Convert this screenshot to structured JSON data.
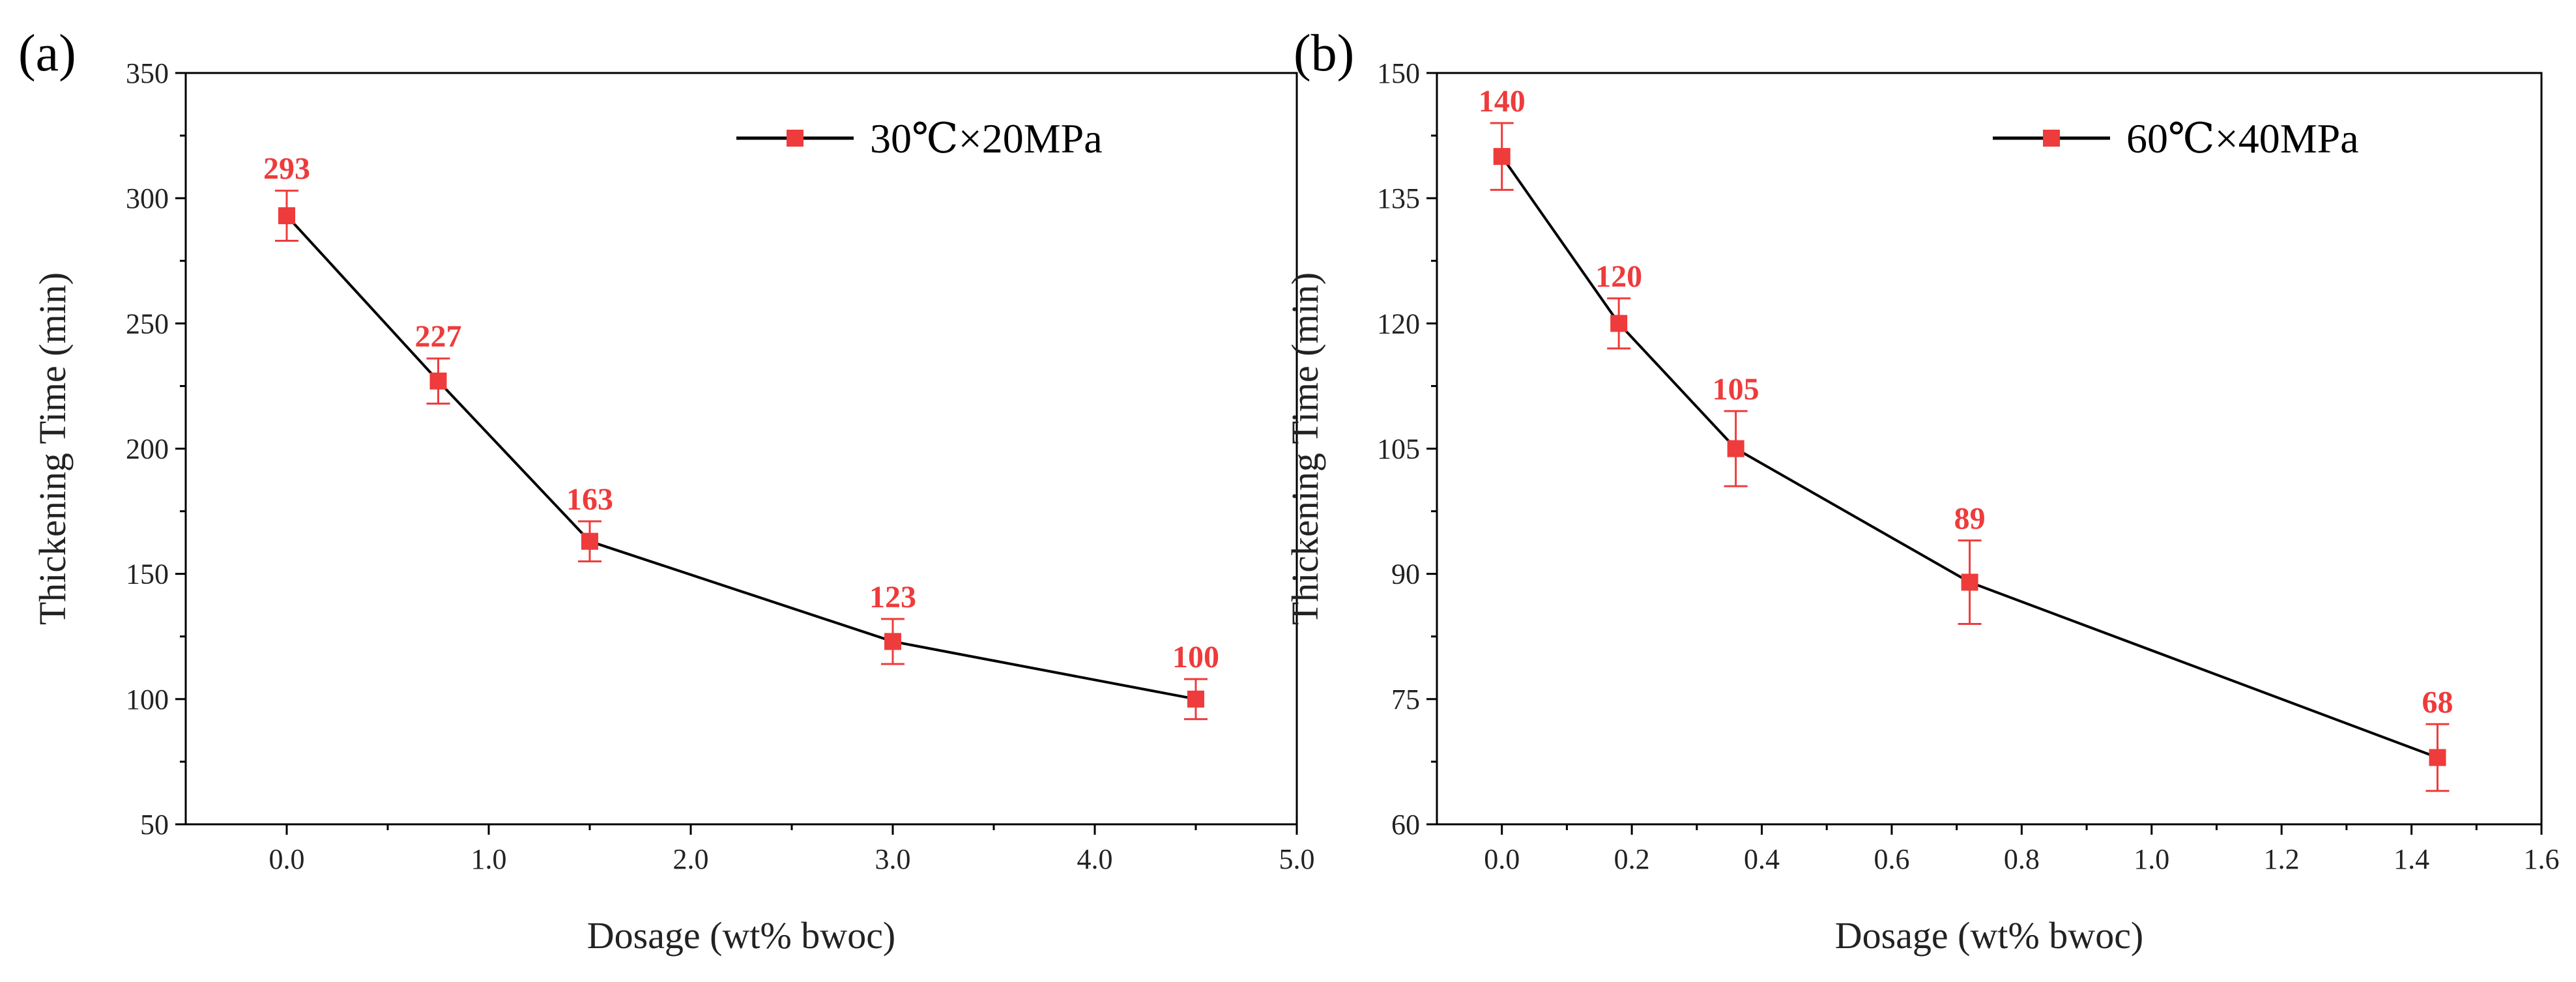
{
  "colors": {
    "line": "#000000",
    "marker": "#ee3b3b",
    "axis": "#000000"
  },
  "chart_data": [
    {
      "type": "line",
      "panel_label": "(a)",
      "xlabel": "Dosage (wt% bwoc)",
      "ylabel": "Thickening Time (min)",
      "xlim": [
        -0.5,
        5.0
      ],
      "ylim": [
        50,
        350
      ],
      "xticks": [
        0,
        1,
        2,
        3,
        4,
        5
      ],
      "xtick_labels": [
        "0.0",
        "1.0",
        "2.0",
        "3.0",
        "4.0",
        "5.0"
      ],
      "yticks": [
        50,
        100,
        150,
        200,
        250,
        300,
        350
      ],
      "ytick_labels": [
        "50",
        "100",
        "150",
        "200",
        "250",
        "300",
        "350"
      ],
      "grid": false,
      "legend_position": "top-right",
      "series": [
        {
          "name": "30℃×20MPa",
          "x": [
            0,
            0.75,
            1.5,
            3.0,
            4.5
          ],
          "y": [
            293,
            227,
            163,
            123,
            100
          ],
          "error": [
            10,
            9,
            8,
            9,
            8
          ],
          "labels": [
            "293",
            "227",
            "163",
            "123",
            "100"
          ]
        }
      ]
    },
    {
      "type": "line",
      "panel_label": "(b)",
      "xlabel": "Dosage (wt% bwoc)",
      "ylabel": "Thickening Time (min)",
      "xlim": [
        -0.1,
        1.6
      ],
      "ylim": [
        60,
        150
      ],
      "xticks": [
        0,
        0.2,
        0.4,
        0.6,
        0.8,
        1.0,
        1.2,
        1.4,
        1.6
      ],
      "xtick_labels": [
        "0.0",
        "0.2",
        "0.4",
        "0.6",
        "0.8",
        "1.0",
        "1.2",
        "1.4",
        "1.6"
      ],
      "yticks": [
        60,
        75,
        90,
        105,
        120,
        135,
        150
      ],
      "ytick_labels": [
        "60",
        "75",
        "90",
        "105",
        "120",
        "135",
        "150"
      ],
      "grid": false,
      "legend_position": "top-right",
      "series": [
        {
          "name": "60℃×40MPa",
          "x": [
            0,
            0.18,
            0.36,
            0.72,
            1.44
          ],
          "y": [
            140,
            120,
            105,
            89,
            68
          ],
          "error": [
            4,
            3,
            4.5,
            5,
            4
          ],
          "labels": [
            "140",
            "120",
            "105",
            "89",
            "68"
          ]
        }
      ]
    }
  ]
}
